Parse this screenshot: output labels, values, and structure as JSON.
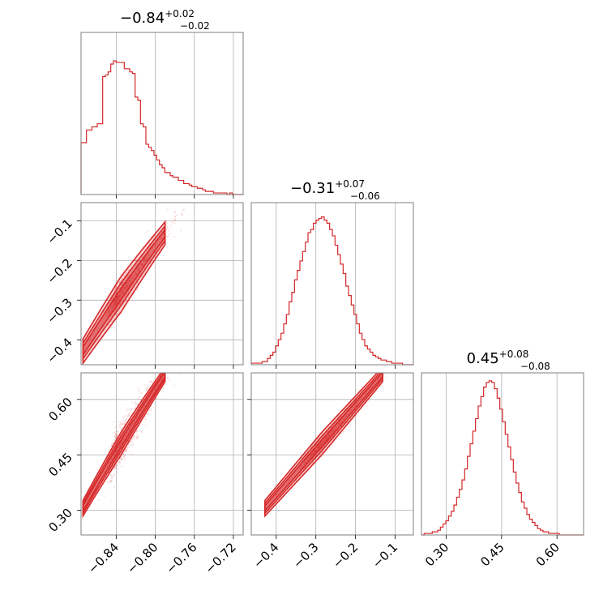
{
  "chart_data": {
    "type": "corner",
    "color": "#d62728",
    "parameters": [
      {
        "index": 0,
        "title_value": "−0.84",
        "title_plus": "+0.02",
        "title_minus": "−0.02",
        "range": [
          -0.876,
          -0.71
        ],
        "ticks": [
          -0.84,
          -0.8,
          -0.76,
          -0.72
        ],
        "tick_labels": [
          "−0.84",
          "−0.80",
          "−0.76",
          "−0.72"
        ]
      },
      {
        "index": 1,
        "title_value": "−0.31",
        "title_plus": "+0.07",
        "title_minus": "−0.06",
        "range": [
          -0.463,
          -0.054
        ],
        "ticks": [
          -0.4,
          -0.3,
          -0.2,
          -0.1
        ],
        "tick_labels": [
          "−0.4",
          "−0.3",
          "−0.2",
          "−0.1"
        ]
      },
      {
        "index": 2,
        "title_value": "0.45",
        "title_plus": "+0.08",
        "title_minus": "−0.08",
        "range": [
          0.233,
          0.672
        ],
        "ticks": [
          0.3,
          0.45,
          0.6
        ],
        "tick_labels": [
          "0.30",
          "0.45",
          "0.60"
        ]
      }
    ],
    "histograms": [
      {
        "param": 0,
        "counts": [
          0.33,
          0.33,
          0.41,
          0.41,
          0.43,
          0.43,
          0.45,
          0.45,
          0.75,
          0.76,
          0.78,
          0.83,
          0.85,
          0.84,
          0.84,
          0.84,
          0.8,
          0.8,
          0.78,
          0.77,
          0.62,
          0.6,
          0.45,
          0.43,
          0.32,
          0.3,
          0.28,
          0.25,
          0.22,
          0.19,
          0.17,
          0.14,
          0.14,
          0.12,
          0.11,
          0.11,
          0.09,
          0.09,
          0.07,
          0.07,
          0.06,
          0.05,
          0.05,
          0.04,
          0.04,
          0.03,
          0.02,
          0.02,
          0.02,
          0.01,
          0.01,
          0.01,
          0.01,
          0.01,
          0.0,
          0.01,
          0.0,
          0.0,
          0.0,
          0.0
        ]
      },
      {
        "param": 1,
        "counts": [
          0.01,
          0.01,
          0.01,
          0.01,
          0.02,
          0.02,
          0.04,
          0.06,
          0.08,
          0.12,
          0.16,
          0.2,
          0.26,
          0.32,
          0.4,
          0.46,
          0.54,
          0.6,
          0.66,
          0.72,
          0.78,
          0.84,
          0.86,
          0.9,
          0.92,
          0.93,
          0.94,
          0.92,
          0.9,
          0.86,
          0.82,
          0.76,
          0.7,
          0.64,
          0.58,
          0.5,
          0.44,
          0.38,
          0.32,
          0.26,
          0.2,
          0.16,
          0.12,
          0.1,
          0.08,
          0.06,
          0.05,
          0.04,
          0.03,
          0.03,
          0.02,
          0.02,
          0.01,
          0.01,
          0.01,
          0.01,
          0.0,
          0.0,
          0.0,
          0.0
        ]
      },
      {
        "param": 2,
        "counts": [
          0.0,
          0.01,
          0.01,
          0.01,
          0.02,
          0.02,
          0.03,
          0.05,
          0.07,
          0.09,
          0.12,
          0.15,
          0.19,
          0.24,
          0.29,
          0.35,
          0.42,
          0.5,
          0.58,
          0.66,
          0.74,
          0.82,
          0.88,
          0.94,
          0.97,
          0.98,
          0.97,
          0.93,
          0.87,
          0.8,
          0.72,
          0.64,
          0.56,
          0.48,
          0.4,
          0.33,
          0.27,
          0.21,
          0.17,
          0.13,
          0.1,
          0.08,
          0.06,
          0.04,
          0.03,
          0.02,
          0.02,
          0.01,
          0.01,
          0.01,
          0.01,
          0.0,
          0.0,
          0.0,
          0.0,
          0.0,
          0.0,
          0.0,
          0.0,
          0.0
        ]
      }
    ],
    "grid": true
  }
}
